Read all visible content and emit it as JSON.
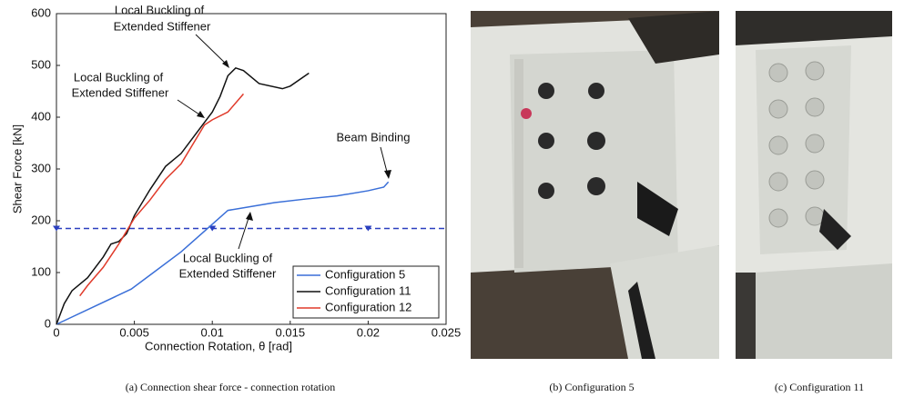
{
  "chart_data": {
    "type": "line",
    "xlabel": "Connection Rotation, θ [rad]",
    "ylabel": "Shear Force [kN]",
    "xlim": [
      0,
      0.025
    ],
    "xticks": [
      0,
      0.005,
      0.01,
      0.015,
      0.02,
      0.025
    ],
    "ylim": [
      0,
      600
    ],
    "yticks": [
      0,
      100,
      200,
      300,
      400,
      500,
      600
    ],
    "grid": false,
    "legend": "lower right",
    "series": [
      {
        "name": "Configuration 5",
        "color": "#3a6fd8",
        "x": [
          0,
          0.0048,
          0.006,
          0.008,
          0.0095,
          0.011,
          0.012,
          0.014,
          0.016,
          0.018,
          0.02,
          0.021,
          0.0213
        ],
        "values": [
          0,
          68,
          95,
          140,
          180,
          220,
          225,
          235,
          242,
          248,
          258,
          265,
          275
        ]
      },
      {
        "name": "Configuration 11",
        "color": "#111111",
        "x": [
          0,
          0.0005,
          0.001,
          0.002,
          0.003,
          0.0035,
          0.004,
          0.0045,
          0.005,
          0.006,
          0.007,
          0.008,
          0.009,
          0.01,
          0.0105,
          0.011,
          0.0115,
          0.012,
          0.013,
          0.0145,
          0.015,
          0.0162
        ],
        "values": [
          0,
          40,
          65,
          90,
          130,
          155,
          160,
          175,
          210,
          260,
          305,
          330,
          370,
          410,
          440,
          480,
          495,
          490,
          465,
          455,
          460,
          485
        ]
      },
      {
        "name": "Configuration 12",
        "color": "#e03a2a",
        "x": [
          0.0015,
          0.002,
          0.003,
          0.004,
          0.005,
          0.006,
          0.007,
          0.008,
          0.009,
          0.0095,
          0.01,
          0.011,
          0.012
        ],
        "values": [
          55,
          75,
          110,
          155,
          205,
          240,
          280,
          310,
          360,
          385,
          395,
          410,
          445
        ]
      }
    ],
    "reference_line": {
      "value": 185,
      "color": "#2a3fbf",
      "marker_x": [
        0,
        0.01,
        0.02
      ]
    },
    "annotations": [
      {
        "lines": [
          "Local Buckling of",
          "Extended Stiffener"
        ]
      },
      {
        "lines": [
          "Local Buckling of",
          "Extended Stiffener"
        ]
      },
      {
        "lines": [
          "Beam Binding"
        ]
      },
      {
        "lines": [
          "Local Buckling of",
          "Extended Stiffener"
        ]
      }
    ]
  },
  "captions": [
    "(a) Connection shear force - connection rotation",
    "(b) Configuration 5",
    "(c) Configuration 11"
  ]
}
